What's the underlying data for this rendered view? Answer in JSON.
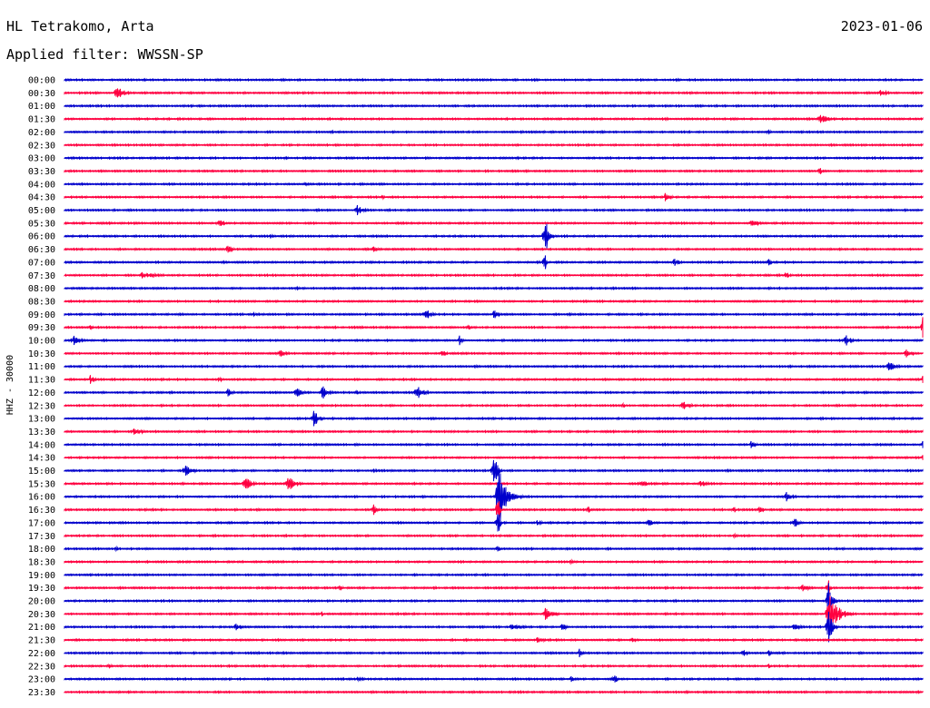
{
  "header": {
    "station": "HL Tetrakomo, Arta",
    "date": "2023-01-06",
    "filter_label": "Applied filter: WWSSN-SP"
  },
  "chart_data": {
    "type": "line",
    "ylabel": "HHZ - 30000",
    "colors": [
      "#0000cc",
      "#ff0040"
    ],
    "tick_labels": [
      "00:00",
      "00:30",
      "01:00",
      "01:30",
      "02:00",
      "02:30",
      "03:00",
      "03:30",
      "04:00",
      "04:30",
      "05:00",
      "05:30",
      "06:00",
      "06:30",
      "07:00",
      "07:30",
      "08:00",
      "08:30",
      "09:00",
      "09:30",
      "10:00",
      "10:30",
      "11:00",
      "11:30",
      "12:00",
      "12:30",
      "13:00",
      "13:30",
      "14:00",
      "14:30",
      "15:00",
      "15:30",
      "16:00",
      "16:30",
      "17:00",
      "17:30",
      "18:00",
      "18:30",
      "19:00",
      "19:30",
      "20:00",
      "20:30",
      "21:00",
      "21:30",
      "22:00",
      "22:30",
      "23:00",
      "23:30"
    ],
    "events": [
      {
        "row": 1,
        "pos": 0.06,
        "amp": 9,
        "dur": 0.025
      },
      {
        "row": 1,
        "pos": 0.95,
        "amp": 4,
        "dur": 0.03
      },
      {
        "row": 3,
        "pos": 0.88,
        "amp": 6,
        "dur": 0.03
      },
      {
        "row": 3,
        "pos": 0.7,
        "amp": 2,
        "dur": 0.01
      },
      {
        "row": 4,
        "pos": 0.31,
        "amp": 3,
        "dur": 0.01
      },
      {
        "row": 4,
        "pos": 0.82,
        "amp": 3,
        "dur": 0.01
      },
      {
        "row": 7,
        "pos": 0.88,
        "amp": 7,
        "dur": 0.005
      },
      {
        "row": 7,
        "pos": 0.52,
        "amp": 2,
        "dur": 0.01
      },
      {
        "row": 8,
        "pos": 0.28,
        "amp": 4,
        "dur": 0.012
      },
      {
        "row": 9,
        "pos": 0.37,
        "amp": 3,
        "dur": 0.01
      },
      {
        "row": 9,
        "pos": 0.7,
        "amp": 6,
        "dur": 0.015
      },
      {
        "row": 10,
        "pos": 0.34,
        "amp": 7,
        "dur": 0.02
      },
      {
        "row": 11,
        "pos": 0.18,
        "amp": 6,
        "dur": 0.02
      },
      {
        "row": 11,
        "pos": 0.8,
        "amp": 4,
        "dur": 0.03
      },
      {
        "row": 12,
        "pos": 0.56,
        "amp": 30,
        "dur": 0.01
      },
      {
        "row": 12,
        "pos": 0.24,
        "amp": 3,
        "dur": 0.01
      },
      {
        "row": 13,
        "pos": 0.19,
        "amp": 6,
        "dur": 0.015
      },
      {
        "row": 13,
        "pos": 0.36,
        "amp": 5,
        "dur": 0.01
      },
      {
        "row": 14,
        "pos": 0.71,
        "amp": 6,
        "dur": 0.015
      },
      {
        "row": 14,
        "pos": 0.82,
        "amp": 5,
        "dur": 0.01
      },
      {
        "row": 14,
        "pos": 0.56,
        "amp": 20,
        "dur": 0.003
      },
      {
        "row": 15,
        "pos": 0.09,
        "amp": 4,
        "dur": 0.05
      },
      {
        "row": 15,
        "pos": 0.84,
        "amp": 5,
        "dur": 0.015
      },
      {
        "row": 16,
        "pos": 0.27,
        "amp": 4,
        "dur": 0.01
      },
      {
        "row": 18,
        "pos": 0.42,
        "amp": 9,
        "dur": 0.015
      },
      {
        "row": 18,
        "pos": 0.5,
        "amp": 6,
        "dur": 0.015
      },
      {
        "row": 18,
        "pos": 0.22,
        "amp": 3,
        "dur": 0.01
      },
      {
        "row": 19,
        "pos": 0.03,
        "amp": 4,
        "dur": 0.01
      },
      {
        "row": 19,
        "pos": 0.47,
        "amp": 5,
        "dur": 0.01
      },
      {
        "row": 19,
        "pos": 1.0,
        "amp": 12,
        "dur": 0.004
      },
      {
        "row": 20,
        "pos": 0.01,
        "amp": 6,
        "dur": 0.02
      },
      {
        "row": 20,
        "pos": 0.46,
        "amp": 6,
        "dur": 0.01
      },
      {
        "row": 20,
        "pos": 0.91,
        "amp": 8,
        "dur": 0.015
      },
      {
        "row": 21,
        "pos": 0.25,
        "amp": 5,
        "dur": 0.02
      },
      {
        "row": 21,
        "pos": 0.44,
        "amp": 5,
        "dur": 0.01
      },
      {
        "row": 21,
        "pos": 0.98,
        "amp": 6,
        "dur": 0.02
      },
      {
        "row": 22,
        "pos": 0.96,
        "amp": 7,
        "dur": 0.02
      },
      {
        "row": 23,
        "pos": 0.03,
        "amp": 5,
        "dur": 0.015
      },
      {
        "row": 23,
        "pos": 0.18,
        "amp": 4,
        "dur": 0.01
      },
      {
        "row": 23,
        "pos": 1.0,
        "amp": 6,
        "dur": 0.01
      },
      {
        "row": 24,
        "pos": 0.19,
        "amp": 5,
        "dur": 0.015
      },
      {
        "row": 24,
        "pos": 0.27,
        "amp": 8,
        "dur": 0.015
      },
      {
        "row": 24,
        "pos": 0.3,
        "amp": 10,
        "dur": 0.015
      },
      {
        "row": 24,
        "pos": 0.41,
        "amp": 10,
        "dur": 0.02
      },
      {
        "row": 24,
        "pos": 0.34,
        "amp": 4,
        "dur": 0.01
      },
      {
        "row": 25,
        "pos": 0.72,
        "amp": 6,
        "dur": 0.02
      },
      {
        "row": 25,
        "pos": 0.65,
        "amp": 3,
        "dur": 0.01
      },
      {
        "row": 26,
        "pos": 0.29,
        "amp": 12,
        "dur": 0.015
      },
      {
        "row": 27,
        "pos": 0.08,
        "amp": 6,
        "dur": 0.025
      },
      {
        "row": 28,
        "pos": 0.8,
        "amp": 6,
        "dur": 0.01
      },
      {
        "row": 28,
        "pos": 1.0,
        "amp": 6,
        "dur": 0.01
      },
      {
        "row": 29,
        "pos": 1.0,
        "amp": 5,
        "dur": 0.01
      },
      {
        "row": 30,
        "pos": 0.14,
        "amp": 8,
        "dur": 0.025
      },
      {
        "row": 30,
        "pos": 0.36,
        "amp": 3,
        "dur": 0.01
      },
      {
        "row": 30,
        "pos": 0.5,
        "amp": 28,
        "dur": 0.01
      },
      {
        "row": 31,
        "pos": 0.21,
        "amp": 9,
        "dur": 0.02
      },
      {
        "row": 31,
        "pos": 0.26,
        "amp": 10,
        "dur": 0.02
      },
      {
        "row": 31,
        "pos": 0.67,
        "amp": 4,
        "dur": 0.04
      },
      {
        "row": 31,
        "pos": 0.74,
        "amp": 4,
        "dur": 0.03
      },
      {
        "row": 32,
        "pos": 0.505,
        "amp": 40,
        "dur": 0.025
      },
      {
        "row": 32,
        "pos": 0.84,
        "amp": 7,
        "dur": 0.02
      },
      {
        "row": 33,
        "pos": 0.36,
        "amp": 7,
        "dur": 0.01
      },
      {
        "row": 33,
        "pos": 0.61,
        "amp": 5,
        "dur": 0.01
      },
      {
        "row": 33,
        "pos": 0.81,
        "amp": 8,
        "dur": 0.01
      },
      {
        "row": 33,
        "pos": 0.78,
        "amp": 5,
        "dur": 0.005
      },
      {
        "row": 33,
        "pos": 0.505,
        "amp": 22,
        "dur": 0.005
      },
      {
        "row": 34,
        "pos": 0.68,
        "amp": 6,
        "dur": 0.015
      },
      {
        "row": 34,
        "pos": 0.85,
        "amp": 7,
        "dur": 0.015
      },
      {
        "row": 34,
        "pos": 0.55,
        "amp": 3,
        "dur": 0.02
      },
      {
        "row": 34,
        "pos": 0.505,
        "amp": 24,
        "dur": 0.005
      },
      {
        "row": 35,
        "pos": 0.78,
        "amp": 3,
        "dur": 0.01
      },
      {
        "row": 36,
        "pos": 0.06,
        "amp": 4,
        "dur": 0.005
      },
      {
        "row": 36,
        "pos": 0.505,
        "amp": 10,
        "dur": 0.005
      },
      {
        "row": 37,
        "pos": 0.59,
        "amp": 3,
        "dur": 0.01
      },
      {
        "row": 39,
        "pos": 0.32,
        "amp": 4,
        "dur": 0.01
      },
      {
        "row": 39,
        "pos": 0.86,
        "amp": 5,
        "dur": 0.02
      },
      {
        "row": 39,
        "pos": 0.89,
        "amp": 12,
        "dur": 0.005
      },
      {
        "row": 40,
        "pos": 0.89,
        "amp": 28,
        "dur": 0.01
      },
      {
        "row": 41,
        "pos": 0.56,
        "amp": 8,
        "dur": 0.025
      },
      {
        "row": 41,
        "pos": 0.3,
        "amp": 3,
        "dur": 0.005
      },
      {
        "row": 41,
        "pos": 0.89,
        "amp": 26,
        "dur": 0.03
      },
      {
        "row": 42,
        "pos": 0.2,
        "amp": 6,
        "dur": 0.015
      },
      {
        "row": 42,
        "pos": 0.52,
        "amp": 4,
        "dur": 0.04
      },
      {
        "row": 42,
        "pos": 0.58,
        "amp": 7,
        "dur": 0.01
      },
      {
        "row": 42,
        "pos": 0.85,
        "amp": 6,
        "dur": 0.015
      },
      {
        "row": 42,
        "pos": 0.89,
        "amp": 30,
        "dur": 0.01
      },
      {
        "row": 43,
        "pos": 0.55,
        "amp": 3,
        "dur": 0.05
      },
      {
        "row": 43,
        "pos": 0.66,
        "amp": 3,
        "dur": 0.03
      },
      {
        "row": 44,
        "pos": 0.6,
        "amp": 5,
        "dur": 0.01
      },
      {
        "row": 44,
        "pos": 0.79,
        "amp": 6,
        "dur": 0.015
      },
      {
        "row": 44,
        "pos": 0.82,
        "amp": 5,
        "dur": 0.01
      },
      {
        "row": 45,
        "pos": 0.05,
        "amp": 3,
        "dur": 0.02
      },
      {
        "row": 45,
        "pos": 0.82,
        "amp": 3,
        "dur": 0.01
      },
      {
        "row": 46,
        "pos": 0.59,
        "amp": 4,
        "dur": 0.015
      },
      {
        "row": 46,
        "pos": 0.64,
        "amp": 8,
        "dur": 0.01
      },
      {
        "row": 46,
        "pos": 0.34,
        "amp": 2,
        "dur": 0.05
      }
    ]
  }
}
